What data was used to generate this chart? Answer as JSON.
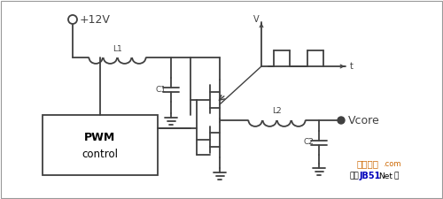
{
  "bg_color": "#ffffff",
  "line_color": "#404040",
  "line_width": 1.3,
  "labels": {
    "v12": "+12V",
    "L1": "L1",
    "C1": "C1",
    "L2": "L2",
    "C2": "C2",
    "Vcore": "Vcore",
    "V": "V",
    "t": "t"
  },
  "watermark1": "脚本之家",
  "watermark2": ".com",
  "watermark3": "电脑",
  "watermark4": "JB51",
  "watermark5": "Net",
  "watermark6": "网",
  "wm_orange": "#cc6600",
  "wm_blue": "#0000bb"
}
